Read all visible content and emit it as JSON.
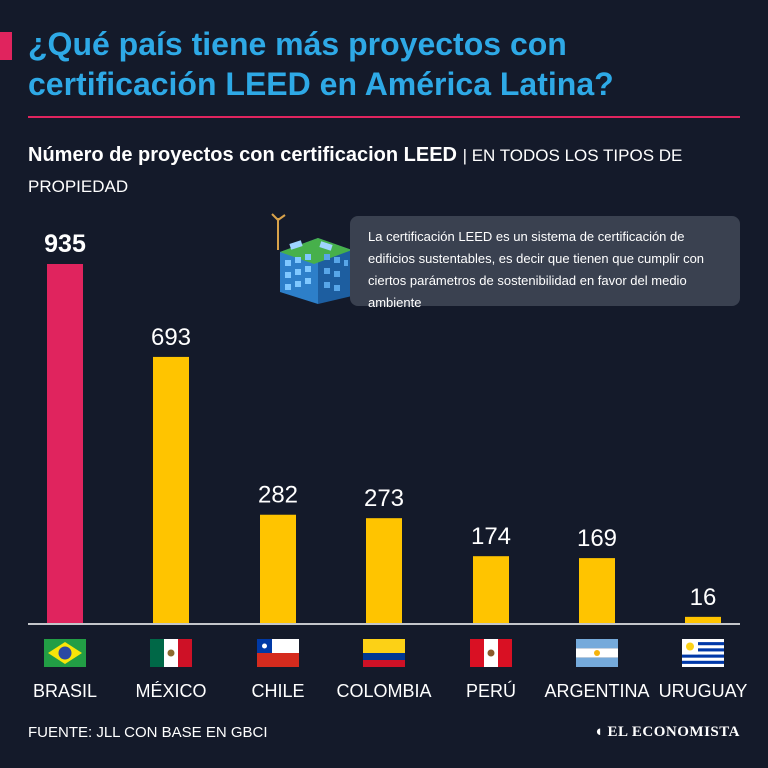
{
  "header": {
    "title": "¿Qué país tiene más proyectos con certificación LEED en América Latina?",
    "subtitle_bold": "Número de proyectos con certificacion LEED",
    "subtitle_light": "| EN TODOS LOS TIPOS DE PROPIEDAD"
  },
  "callout": {
    "text": "La certificación LEED es un sistema de certificación de edificios sustentables, es decir que tienen que cumplir con ciertos parámetros de sostenibilidad en favor del medio ambiente",
    "icon": "green-building-icon"
  },
  "footer": {
    "source": "FUENTE: JLL CON BASE EN GBCI",
    "logo": "EL ECONOMISTA"
  },
  "colors": {
    "background": "#141a2a",
    "title": "#2ea9e6",
    "accent": "#e0245e",
    "bar_highlight": "#e0245e",
    "bar_default": "#ffc400"
  },
  "chart_data": {
    "type": "bar",
    "title": "Número de proyectos con certificacion LEED",
    "categories": [
      "BRASIL",
      "MÉXICO",
      "CHILE",
      "COLOMBIA",
      "PERÚ",
      "ARGENTINA",
      "URUGUAY"
    ],
    "values": [
      935,
      693,
      282,
      273,
      174,
      169,
      16
    ],
    "flags": [
      "brazil-flag-icon",
      "mexico-flag-icon",
      "chile-flag-icon",
      "colombia-flag-icon",
      "peru-flag-icon",
      "argentina-flag-icon",
      "uruguay-flag-icon"
    ],
    "highlight_index": 0,
    "ylim": [
      0,
      935
    ],
    "grid": false,
    "xlabel": "",
    "ylabel": ""
  }
}
